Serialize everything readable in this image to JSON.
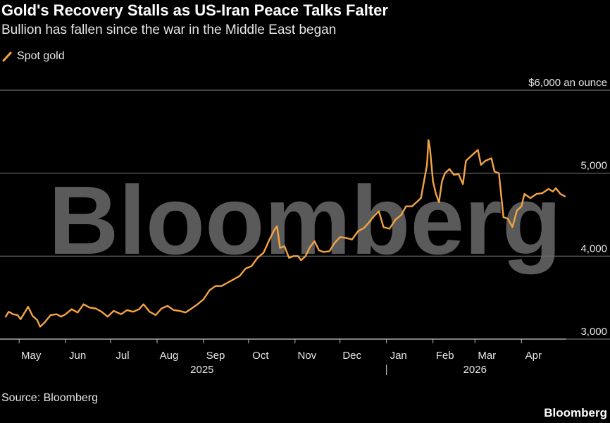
{
  "header": {
    "title": "Gold's Recovery Stalls as US-Iran Peace Talks Falter",
    "subtitle": "Bullion has fallen since the war in the Middle East began"
  },
  "footer": {
    "source": "Source: Bloomberg",
    "brand": "Bloomberg"
  },
  "watermark": "Bloomberg",
  "colors": {
    "series": "#f5a443",
    "gridline": "#6e6e6e",
    "background": "#000000"
  },
  "chart_data": {
    "type": "line",
    "title": "Gold's Recovery Stalls as US-Iran Peace Talks Falter",
    "subtitle": "Bullion has fallen since the war in the Middle East began",
    "ylabel": "$6,000 an ounce",
    "ylim": [
      3000,
      6000
    ],
    "yticks": [
      {
        "value": 3000,
        "label": "3,000"
      },
      {
        "value": 4000,
        "label": "4,000"
      },
      {
        "value": 5000,
        "label": "5,000"
      },
      {
        "value": 6000,
        "label": "$6,000 an ounce"
      }
    ],
    "xlim": [
      "2025-04-22",
      "2026-04-30"
    ],
    "xticks": [
      {
        "date": "2025-05-01",
        "label": "May"
      },
      {
        "date": "2025-06-01",
        "label": "Jun"
      },
      {
        "date": "2025-07-01",
        "label": "Jul"
      },
      {
        "date": "2025-08-01",
        "label": "Aug"
      },
      {
        "date": "2025-09-01",
        "label": "Sep"
      },
      {
        "date": "2025-10-01",
        "label": "Oct"
      },
      {
        "date": "2025-11-01",
        "label": "Nov"
      },
      {
        "date": "2025-12-01",
        "label": "Dec"
      },
      {
        "date": "2026-01-01",
        "label": "Jan"
      },
      {
        "date": "2026-02-01",
        "label": "Feb"
      },
      {
        "date": "2026-03-01",
        "label": "Mar"
      },
      {
        "date": "2026-04-01",
        "label": "Apr"
      }
    ],
    "year_labels": [
      {
        "date": "2025-08-31",
        "label": "2025"
      },
      {
        "date": "2026-03-01",
        "label": "2026"
      }
    ],
    "year_divider": "2026-01-01",
    "grid": true,
    "legend_position": "top-left",
    "series": [
      {
        "name": "Spot gold",
        "color": "#f5a443",
        "points": [
          [
            "2025-04-22",
            3270
          ],
          [
            "2025-04-24",
            3330
          ],
          [
            "2025-04-27",
            3300
          ],
          [
            "2025-04-30",
            3290
          ],
          [
            "2025-05-02",
            3240
          ],
          [
            "2025-05-05",
            3330
          ],
          [
            "2025-05-07",
            3390
          ],
          [
            "2025-05-10",
            3280
          ],
          [
            "2025-05-13",
            3230
          ],
          [
            "2025-05-15",
            3150
          ],
          [
            "2025-05-18",
            3200
          ],
          [
            "2025-05-22",
            3290
          ],
          [
            "2025-05-26",
            3300
          ],
          [
            "2025-05-29",
            3270
          ],
          [
            "2025-06-01",
            3300
          ],
          [
            "2025-06-05",
            3360
          ],
          [
            "2025-06-09",
            3320
          ],
          [
            "2025-06-13",
            3420
          ],
          [
            "2025-06-17",
            3380
          ],
          [
            "2025-06-21",
            3370
          ],
          [
            "2025-06-25",
            3330
          ],
          [
            "2025-06-29",
            3270
          ],
          [
            "2025-07-03",
            3340
          ],
          [
            "2025-07-08",
            3300
          ],
          [
            "2025-07-12",
            3350
          ],
          [
            "2025-07-16",
            3330
          ],
          [
            "2025-07-20",
            3360
          ],
          [
            "2025-07-23",
            3420
          ],
          [
            "2025-07-27",
            3330
          ],
          [
            "2025-07-31",
            3290
          ],
          [
            "2025-08-04",
            3370
          ],
          [
            "2025-08-08",
            3400
          ],
          [
            "2025-08-12",
            3350
          ],
          [
            "2025-08-16",
            3340
          ],
          [
            "2025-08-20",
            3320
          ],
          [
            "2025-08-24",
            3370
          ],
          [
            "2025-08-28",
            3420
          ],
          [
            "2025-09-01",
            3480
          ],
          [
            "2025-09-05",
            3590
          ],
          [
            "2025-09-09",
            3640
          ],
          [
            "2025-09-13",
            3640
          ],
          [
            "2025-09-17",
            3680
          ],
          [
            "2025-09-21",
            3720
          ],
          [
            "2025-09-25",
            3760
          ],
          [
            "2025-09-29",
            3850
          ],
          [
            "2025-10-03",
            3880
          ],
          [
            "2025-10-07",
            3980
          ],
          [
            "2025-10-11",
            4040
          ],
          [
            "2025-10-15",
            4200
          ],
          [
            "2025-10-18",
            4310
          ],
          [
            "2025-10-20",
            4360
          ],
          [
            "2025-10-22",
            4100
          ],
          [
            "2025-10-25",
            4120
          ],
          [
            "2025-10-28",
            3980
          ],
          [
            "2025-10-31",
            4000
          ],
          [
            "2025-11-03",
            4000
          ],
          [
            "2025-11-05",
            3950
          ],
          [
            "2025-11-08",
            4000
          ],
          [
            "2025-11-11",
            4110
          ],
          [
            "2025-11-14",
            4180
          ],
          [
            "2025-11-17",
            4070
          ],
          [
            "2025-11-20",
            4050
          ],
          [
            "2025-11-24",
            4060
          ],
          [
            "2025-11-27",
            4150
          ],
          [
            "2025-12-01",
            4230
          ],
          [
            "2025-12-05",
            4220
          ],
          [
            "2025-12-09",
            4200
          ],
          [
            "2025-12-13",
            4300
          ],
          [
            "2025-12-17",
            4340
          ],
          [
            "2025-12-20",
            4400
          ],
          [
            "2025-12-24",
            4490
          ],
          [
            "2025-12-27",
            4540
          ],
          [
            "2025-12-30",
            4350
          ],
          [
            "2026-01-03",
            4330
          ],
          [
            "2026-01-07",
            4440
          ],
          [
            "2026-01-11",
            4500
          ],
          [
            "2026-01-14",
            4600
          ],
          [
            "2026-01-18",
            4600
          ],
          [
            "2026-01-21",
            4650
          ],
          [
            "2026-01-24",
            4700
          ],
          [
            "2026-01-26",
            4900
          ],
          [
            "2026-01-28",
            5100
          ],
          [
            "2026-01-29",
            5400
          ],
          [
            "2026-01-30",
            5300
          ],
          [
            "2026-02-01",
            4900
          ],
          [
            "2026-02-03",
            4750
          ],
          [
            "2026-02-05",
            4650
          ],
          [
            "2026-02-07",
            4900
          ],
          [
            "2026-02-09",
            5000
          ],
          [
            "2026-02-12",
            5050
          ],
          [
            "2026-02-15",
            4980
          ],
          [
            "2026-02-18",
            4990
          ],
          [
            "2026-02-21",
            4870
          ],
          [
            "2026-02-23",
            5150
          ],
          [
            "2026-02-26",
            5200
          ],
          [
            "2026-03-01",
            5250
          ],
          [
            "2026-03-03",
            5280
          ],
          [
            "2026-03-05",
            5100
          ],
          [
            "2026-03-08",
            5150
          ],
          [
            "2026-03-12",
            5180
          ],
          [
            "2026-03-14",
            5020
          ],
          [
            "2026-03-17",
            5000
          ],
          [
            "2026-03-20",
            4470
          ],
          [
            "2026-03-23",
            4450
          ],
          [
            "2026-03-26",
            4350
          ],
          [
            "2026-03-29",
            4550
          ],
          [
            "2026-04-01",
            4600
          ],
          [
            "2026-04-03",
            4750
          ],
          [
            "2026-04-07",
            4700
          ],
          [
            "2026-04-11",
            4750
          ],
          [
            "2026-04-15",
            4760
          ],
          [
            "2026-04-19",
            4810
          ],
          [
            "2026-04-22",
            4780
          ],
          [
            "2026-04-24",
            4820
          ],
          [
            "2026-04-27",
            4750
          ],
          [
            "2026-04-30",
            4720
          ]
        ]
      }
    ]
  }
}
